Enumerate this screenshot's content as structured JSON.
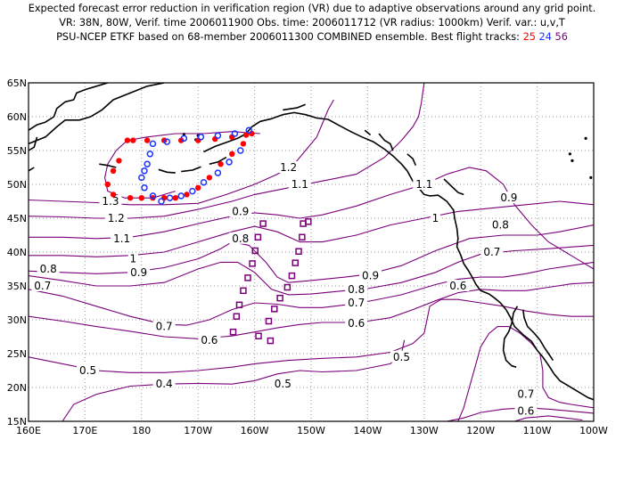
{
  "header": {
    "line1": "Expected forecast error reduction in verification region (VR) due to adaptive observations around any grid point.",
    "line2": "VR: 38N, 80W, Verif. time 2006011900   Obs. time: 2006011712 (VR radius: 1000km)    Verif. var.: u,v,T",
    "line3_prefix": "PSU-NCEP ETKF based on 68-member 2006011300 COMBINED ensemble.  Best flight tracks:",
    "track_labels": [
      "25",
      "24",
      "56"
    ]
  },
  "colors": {
    "contour": "#7a007a",
    "coast": "#000000",
    "grid": "#999999",
    "track_25": "#ff0000",
    "track_24": "#1a33ff",
    "track_56": "#7a007a"
  },
  "axes": {
    "x_ticks": [
      "160E",
      "170E",
      "180",
      "170W",
      "160W",
      "150W",
      "140W",
      "130W",
      "120W",
      "110W",
      "100W"
    ],
    "y_ticks": [
      "65N",
      "60N",
      "55N",
      "50N",
      "45N",
      "40N",
      "35N",
      "30N",
      "25N",
      "20N",
      "15N"
    ],
    "lon_range": [
      160,
      260
    ],
    "lat_range": [
      15,
      65
    ]
  },
  "contour_labels": [
    {
      "text": "1.3",
      "lon": 174.5,
      "lat": 47.5
    },
    {
      "text": "1.2",
      "lon": 175.5,
      "lat": 45.0
    },
    {
      "text": "1.1",
      "lon": 176.5,
      "lat": 42.0
    },
    {
      "text": "1",
      "lon": 178.5,
      "lat": 39.0
    },
    {
      "text": "0.9",
      "lon": 179.5,
      "lat": 37.0
    },
    {
      "text": "0.8",
      "lon": 163.5,
      "lat": 37.5
    },
    {
      "text": "0.7",
      "lon": 162.5,
      "lat": 35.0
    },
    {
      "text": "0.7",
      "lon": 184.0,
      "lat": 29.0
    },
    {
      "text": "0.6",
      "lon": 192.0,
      "lat": 27.0
    },
    {
      "text": "0.5",
      "lon": 170.5,
      "lat": 22.5
    },
    {
      "text": "0.4",
      "lon": 184.0,
      "lat": 20.5
    },
    {
      "text": "0.5",
      "lon": 205.0,
      "lat": 20.5
    },
    {
      "text": "1.2",
      "lon": 206.0,
      "lat": 52.5
    },
    {
      "text": "1.1",
      "lon": 208.0,
      "lat": 50.0
    },
    {
      "text": "0.9",
      "lon": 197.5,
      "lat": 46.0
    },
    {
      "text": "0.8",
      "lon": 197.5,
      "lat": 42.0
    },
    {
      "text": "0.9",
      "lon": 220.5,
      "lat": 36.5
    },
    {
      "text": "0.8",
      "lon": 218.0,
      "lat": 34.5
    },
    {
      "text": "0.7",
      "lon": 218.0,
      "lat": 32.5
    },
    {
      "text": "0.6",
      "lon": 218.0,
      "lat": 29.5
    },
    {
      "text": "1.1",
      "lon": 230.0,
      "lat": 50.0
    },
    {
      "text": "1",
      "lon": 232.0,
      "lat": 45.0
    },
    {
      "text": "0.9",
      "lon": 245.0,
      "lat": 48.0
    },
    {
      "text": "0.8",
      "lon": 243.5,
      "lat": 44.0
    },
    {
      "text": "0.7",
      "lon": 242.0,
      "lat": 40.0
    },
    {
      "text": "0.6",
      "lon": 236.0,
      "lat": 35.0
    },
    {
      "text": "0.5",
      "lon": 226.0,
      "lat": 24.5
    },
    {
      "text": "0.7",
      "lon": 248.0,
      "lat": 19.0
    },
    {
      "text": "0.6",
      "lon": 248.0,
      "lat": 16.5
    }
  ],
  "flight_tracks": [
    {
      "label": "25",
      "marker": "filled-circle",
      "points": [
        [
          177.5,
          56.5
        ],
        [
          176,
          53.5
        ],
        [
          175,
          52
        ],
        [
          174,
          50
        ],
        [
          175,
          48.5
        ],
        [
          178,
          48
        ],
        [
          180,
          48
        ],
        [
          182,
          48
        ],
        [
          184,
          48
        ],
        [
          186,
          48
        ],
        [
          188,
          48.5
        ],
        [
          190,
          49.5
        ],
        [
          192,
          51
        ],
        [
          194,
          53
        ],
        [
          196,
          54.5
        ],
        [
          198,
          56
        ],
        [
          199.5,
          57.5
        ],
        [
          178.5,
          56.5
        ],
        [
          181,
          56.5
        ],
        [
          184,
          56.5
        ],
        [
          187,
          56.5
        ],
        [
          190,
          56.5
        ],
        [
          193,
          56.7
        ],
        [
          196,
          57
        ],
        [
          198.5,
          57.3
        ]
      ]
    },
    {
      "label": "24",
      "marker": "open-circle",
      "points": [
        [
          182,
          56
        ],
        [
          181.5,
          54.5
        ],
        [
          181,
          53
        ],
        [
          180.5,
          52
        ],
        [
          180,
          51
        ],
        [
          180.5,
          49.5
        ],
        [
          182,
          48.3
        ],
        [
          183.5,
          47.5
        ],
        [
          185,
          48
        ],
        [
          187,
          48.3
        ],
        [
          189,
          49
        ],
        [
          191,
          50.3
        ],
        [
          193.5,
          51.7
        ],
        [
          195.5,
          53.3
        ],
        [
          197.5,
          55
        ],
        [
          184.5,
          56.3
        ],
        [
          187.5,
          56.8
        ],
        [
          190.5,
          57
        ],
        [
          193.5,
          57.2
        ],
        [
          196.5,
          57.5
        ],
        [
          199,
          58
        ]
      ]
    },
    {
      "label": "56",
      "marker": "open-square",
      "points": [
        [
          196.2,
          28.2
        ],
        [
          196.8,
          30.5
        ],
        [
          197.3,
          32.2
        ],
        [
          198,
          34.3
        ],
        [
          198.8,
          36.2
        ],
        [
          199.6,
          38.3
        ],
        [
          200.1,
          40.2
        ],
        [
          200.6,
          42.2
        ],
        [
          201.5,
          44.2
        ],
        [
          202.5,
          29.8
        ],
        [
          203.5,
          31.6
        ],
        [
          204.5,
          33.2
        ],
        [
          205.8,
          34.8
        ],
        [
          206.6,
          36.5
        ],
        [
          207.2,
          38.4
        ],
        [
          207.8,
          40.1
        ],
        [
          208.4,
          42.2
        ],
        [
          208.6,
          44.2
        ],
        [
          209.5,
          44.5
        ],
        [
          200.7,
          27.6
        ],
        [
          202.8,
          26.9
        ]
      ]
    }
  ]
}
